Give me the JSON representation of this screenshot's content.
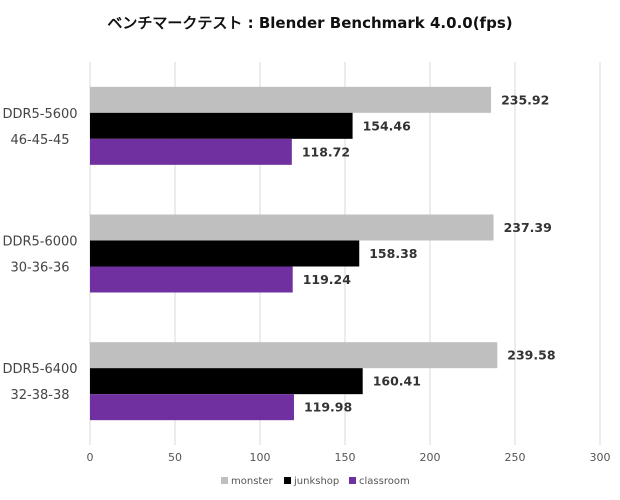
{
  "chart_data": {
    "type": "bar",
    "orientation": "horizontal",
    "title": "ベンチマークテスト : Blender Benchmark 4.0.0(fps)",
    "categories": [
      [
        "DDR5-5600",
        "46-45-45"
      ],
      [
        "DDR5-6000",
        "30-36-36"
      ],
      [
        "DDR5-6400",
        "32-38-38"
      ]
    ],
    "series": [
      {
        "name": "monster",
        "color": "#bfbfbf",
        "values": [
          235.92,
          237.39,
          239.58
        ]
      },
      {
        "name": "junkshop",
        "color": "#000000",
        "values": [
          154.46,
          158.38,
          160.41
        ]
      },
      {
        "name": "classroom",
        "color": "#7030a0",
        "values": [
          118.72,
          119.24,
          119.98
        ]
      }
    ],
    "xlim": [
      0,
      300
    ],
    "xticks": [
      0,
      50,
      100,
      150,
      200,
      250,
      300
    ],
    "grid": true,
    "legend_position": "bottom",
    "xlabel": "",
    "ylabel": ""
  }
}
